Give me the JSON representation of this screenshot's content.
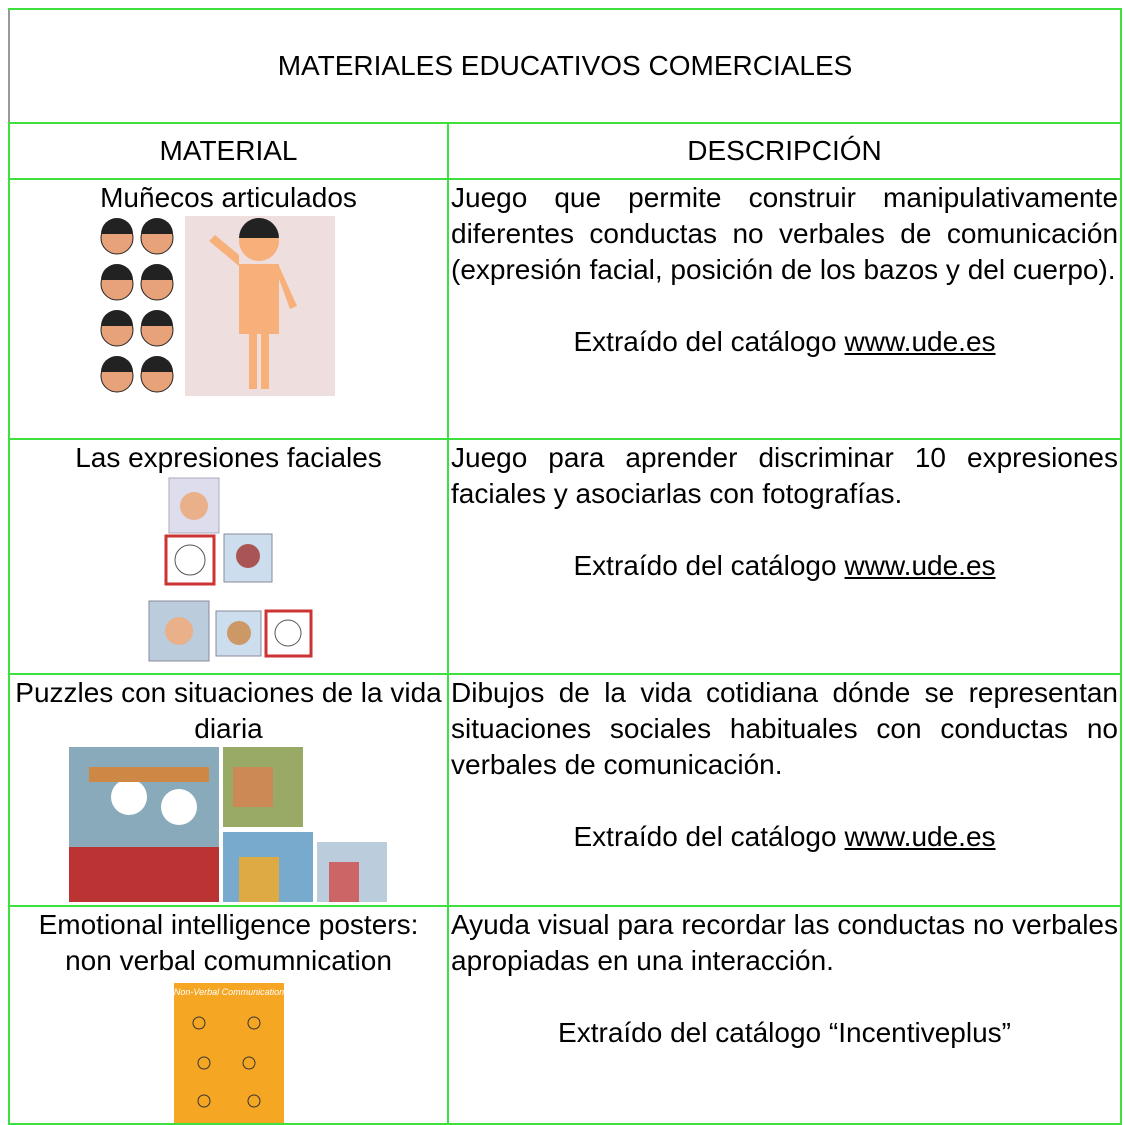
{
  "table": {
    "title": "MATERIALES EDUCATIVOS COMERCIALES",
    "headers": [
      "MATERIAL",
      "DESCRIPCIÓN"
    ],
    "rows": [
      {
        "material": "Muñecos articulados",
        "description": "Juego que permite construir manipulativamente diferentes conductas no verbales de comunicación (expresión facial, posición de los bazos y del cuerpo).",
        "source": "Extraído del catálogo",
        "link": "www.ude.es"
      },
      {
        "material": "Las expresiones faciales",
        "description": "Juego para aprender discriminar 10 expresiones faciales y asociarlas con fotografías.",
        "source": "Extraído del catálogo",
        "link": "www.ude.es"
      },
      {
        "material": "Puzzles con situaciones de la vida diaria",
        "description": "Dibujos de la vida cotidiana dónde se representan situaciones sociales habituales con conductas no verbales de comunicación.",
        "source": "Extraído del catálogo",
        "link": "www.ude.es"
      },
      {
        "material": "Emotional intelligence posters: non verbal comumnication",
        "description": "Ayuda visual para recordar las conductas no verbales apropiadas en una interacción.",
        "source": "Extraído del catálogo “Incentiveplus”",
        "image_text": "Non-Verbal Communication"
      }
    ]
  }
}
